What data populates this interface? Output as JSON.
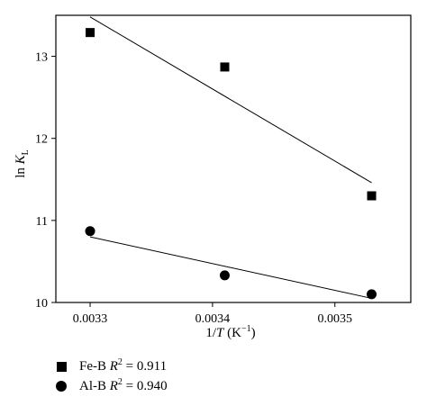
{
  "chart_data": {
    "type": "scatter",
    "xlabel_parts": {
      "pre": "1/",
      "var": "T",
      "unit_open": " (K",
      "unit_exp": "−1",
      "unit_close": ")"
    },
    "ylabel_parts": {
      "pre": "ln ",
      "var": "K",
      "sub": "L"
    },
    "xlim": [
      0.003272,
      0.003562
    ],
    "ylim": [
      10.0,
      13.5
    ],
    "x_ticks": [
      0.0033,
      0.0034,
      0.0035
    ],
    "x_tick_labels": [
      "0.0033",
      "0.0034",
      "0.0035"
    ],
    "y_ticks": [
      10,
      11,
      12,
      13
    ],
    "y_tick_labels": [
      "10",
      "11",
      "12",
      "13"
    ],
    "series": [
      {
        "name": "Fe-B",
        "marker": "square",
        "points": [
          {
            "x": 0.0033,
            "y": 13.29
          },
          {
            "x": 0.00341,
            "y": 12.87
          },
          {
            "x": 0.00353,
            "y": 11.3
          }
        ],
        "fit": [
          {
            "x": 0.0033,
            "y": 13.48
          },
          {
            "x": 0.00353,
            "y": 11.46
          }
        ],
        "legend": {
          "name": "Fe-B",
          "r_var": "R",
          "r_exp": "2",
          "r_val": " = 0.911"
        }
      },
      {
        "name": "Al-B",
        "marker": "circle",
        "points": [
          {
            "x": 0.0033,
            "y": 10.87
          },
          {
            "x": 0.00341,
            "y": 10.33
          },
          {
            "x": 0.00353,
            "y": 10.1
          }
        ],
        "fit": [
          {
            "x": 0.0033,
            "y": 10.8
          },
          {
            "x": 0.00353,
            "y": 10.05
          }
        ],
        "legend": {
          "name": "Al-B",
          "r_var": "R",
          "r_exp": "2",
          "r_val": " = 0.940"
        }
      }
    ],
    "legend_position": "bottom-left",
    "grid": false
  }
}
